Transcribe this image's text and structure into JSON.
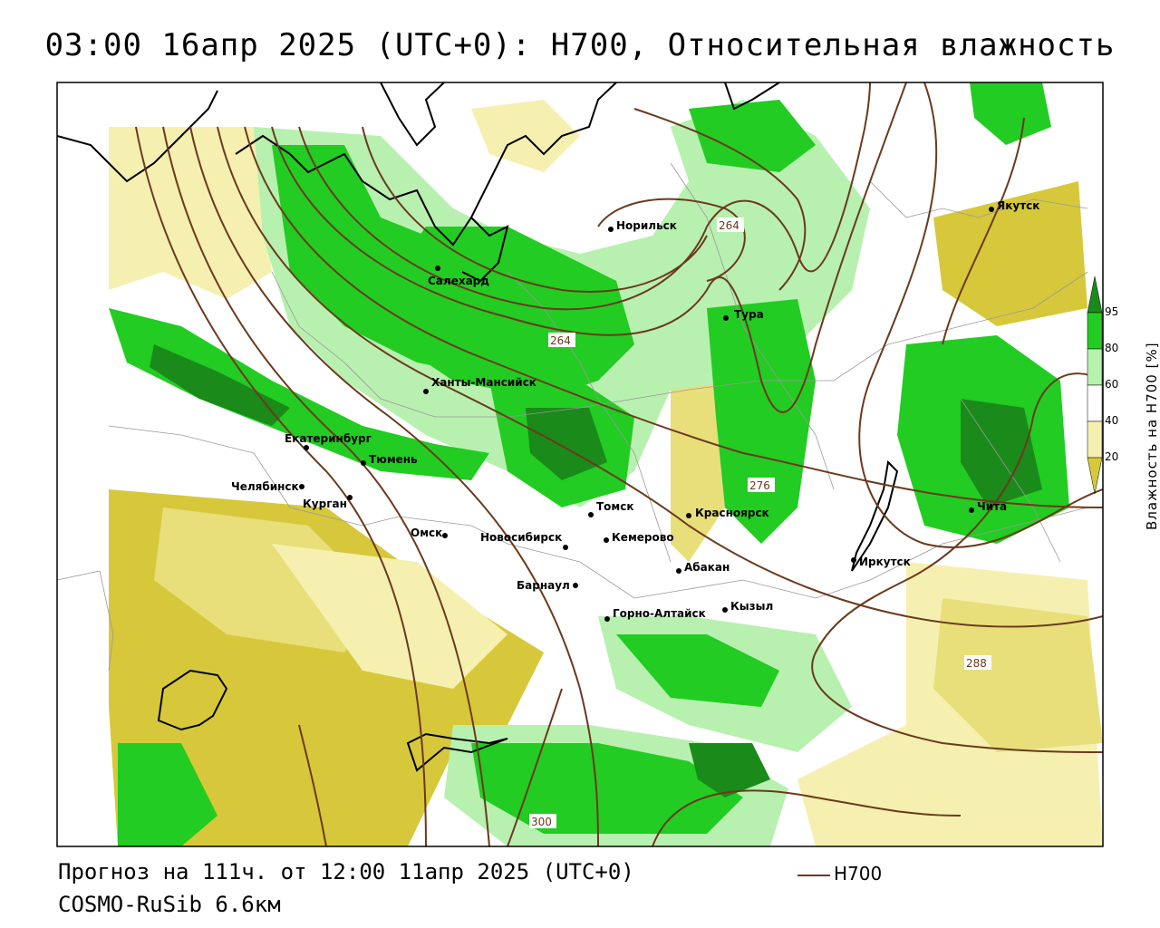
{
  "title": "03:00 16апр 2025 (UTC+0): H700, Относительная влажность",
  "footer": {
    "forecast": "Прогноз на 111ч. от 12:00 11апр 2025 (UTC+0)",
    "model": "COSMO-RuSib 6.6км"
  },
  "legend_line": {
    "label": "H700",
    "color": "#6b3a1e"
  },
  "colorbar": {
    "title": "Влажность на H700 [%]",
    "ticks": [
      "95",
      "80",
      "60",
      "40",
      "20"
    ],
    "colors": [
      "#1a8a1a",
      "#22cc22",
      "#b8f0b0",
      "#ffffff",
      "#f5f0b0",
      "#d6c83a"
    ]
  },
  "cities": [
    {
      "name": "Якутск"
    },
    {
      "name": "Норильск"
    },
    {
      "name": "Салехард"
    },
    {
      "name": "Тура"
    },
    {
      "name": "Ханты-Мансийск"
    },
    {
      "name": "Екатеринбург"
    },
    {
      "name": "Тюмень"
    },
    {
      "name": "Челябинск"
    },
    {
      "name": "Курган"
    },
    {
      "name": "Томск"
    },
    {
      "name": "Красноярск"
    },
    {
      "name": "Омск"
    },
    {
      "name": "Новосибирск"
    },
    {
      "name": "Кемерово"
    },
    {
      "name": "Абакан"
    },
    {
      "name": "Иркутск"
    },
    {
      "name": "Чита"
    },
    {
      "name": "Барнаул"
    },
    {
      "name": "Горно-Алтайск"
    },
    {
      "name": "Кызыл"
    }
  ],
  "isoline_labels": [
    "264",
    "264",
    "276",
    "288",
    "300"
  ]
}
